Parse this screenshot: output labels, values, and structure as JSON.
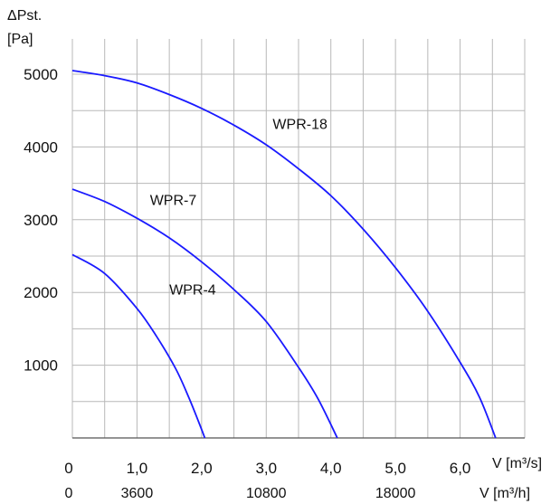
{
  "chart_data": {
    "type": "line",
    "ylabel": [
      "ΔPst.",
      "[Pa]"
    ],
    "xlabel_primary": "V [m³/s]",
    "xlabel_secondary": "V [m³/h]",
    "xlim": [
      0,
      7.0
    ],
    "ylim": [
      0,
      5000
    ],
    "grid": true,
    "y_ticks": [
      {
        "value": 1000,
        "label": "1000"
      },
      {
        "value": 2000,
        "label": "2000"
      },
      {
        "value": 3000,
        "label": "3000"
      },
      {
        "value": 4000,
        "label": "4000"
      },
      {
        "value": 5000,
        "label": "5000"
      }
    ],
    "x_ticks_primary": [
      {
        "value": 0,
        "label": "0"
      },
      {
        "value": 1.0,
        "label": "1,0"
      },
      {
        "value": 2.0,
        "label": "2,0"
      },
      {
        "value": 3.0,
        "label": "3,0"
      },
      {
        "value": 4.0,
        "label": "4,0"
      },
      {
        "value": 5.0,
        "label": "5,0"
      },
      {
        "value": 6.0,
        "label": "6,0"
      }
    ],
    "x_ticks_secondary": [
      {
        "value": 0,
        "label": "0"
      },
      {
        "value": 1.0,
        "label": "3600"
      },
      {
        "value": 3.0,
        "label": "10800"
      },
      {
        "value": 5.0,
        "label": "18000"
      }
    ],
    "series": [
      {
        "name": "WPR-4",
        "color": "#1a1aff",
        "x": [
          0,
          0.5,
          1.0,
          1.3,
          1.6,
          1.8,
          1.95,
          2.05
        ],
        "y": [
          2520,
          2260,
          1780,
          1400,
          950,
          560,
          230,
          0
        ]
      },
      {
        "name": "WPR-7",
        "color": "#1a1aff",
        "x": [
          0,
          0.5,
          1.0,
          1.5,
          2.0,
          2.5,
          3.0,
          3.5,
          3.8,
          4.1
        ],
        "y": [
          3420,
          3250,
          3020,
          2750,
          2420,
          2040,
          1600,
          970,
          540,
          0
        ]
      },
      {
        "name": "WPR-18",
        "color": "#1a1aff",
        "x": [
          0,
          0.5,
          1.0,
          1.5,
          2.0,
          2.5,
          3.0,
          3.5,
          4.0,
          4.5,
          5.0,
          5.5,
          6.0,
          6.3,
          6.55
        ],
        "y": [
          5050,
          4980,
          4880,
          4720,
          4530,
          4300,
          4030,
          3700,
          3330,
          2870,
          2340,
          1740,
          1040,
          560,
          0
        ]
      }
    ],
    "series_labels": [
      {
        "name": "WPR-18",
        "x": 3.1,
        "y": 4250
      },
      {
        "name": "WPR-7",
        "x": 1.2,
        "y": 3200
      },
      {
        "name": "WPR-4",
        "x": 1.5,
        "y": 1970
      }
    ]
  }
}
